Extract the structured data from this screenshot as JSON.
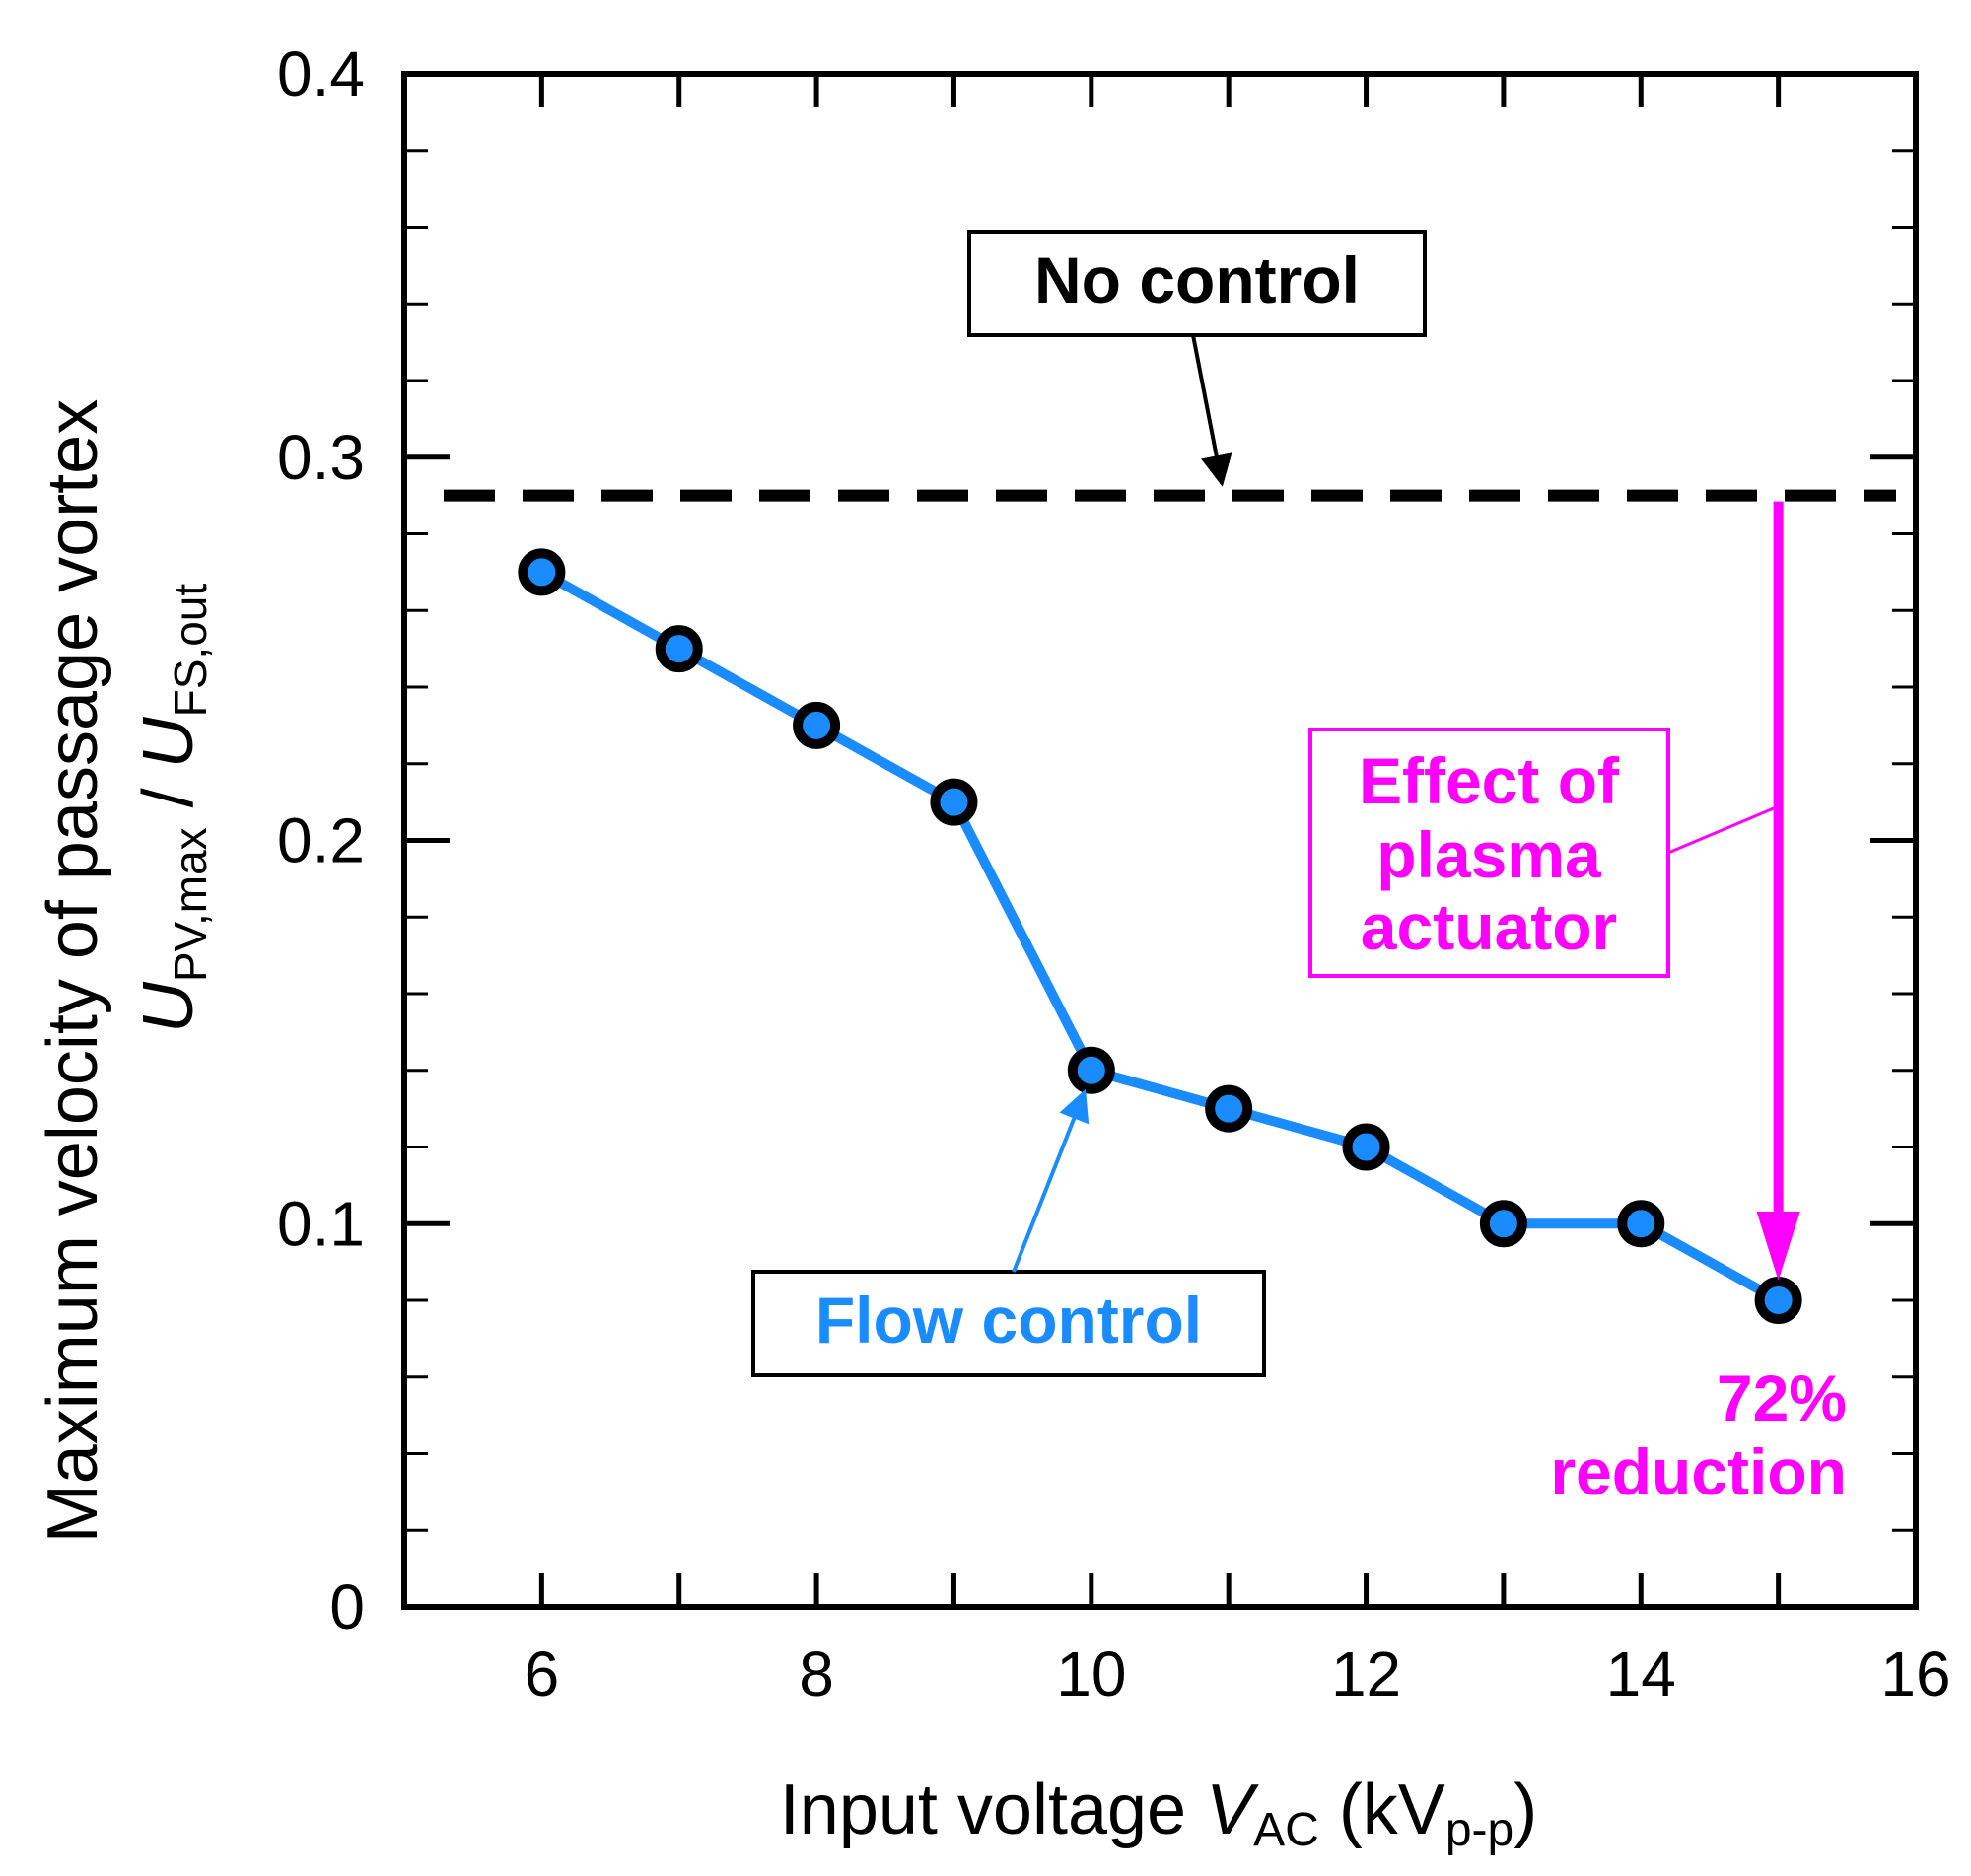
{
  "chart_data": {
    "type": "line",
    "x": [
      6,
      7,
      8,
      9,
      10,
      11,
      12,
      13,
      14,
      15
    ],
    "series": [
      {
        "name": "Flow control",
        "values": [
          0.27,
          0.25,
          0.23,
          0.21,
          0.14,
          0.13,
          0.12,
          0.1,
          0.1,
          0.08
        ],
        "color": "#1a8cff"
      }
    ],
    "reference_lines": [
      {
        "name": "No control",
        "y": 0.29,
        "style": "dashed",
        "color": "#000000"
      }
    ],
    "xlim": [
      5,
      16
    ],
    "ylim": [
      0,
      0.4
    ],
    "x_ticks": [
      6,
      8,
      10,
      12,
      14,
      16
    ],
    "x_tick_labels": [
      "6",
      "8",
      "10",
      "12",
      "14",
      "16"
    ],
    "y_ticks": [
      0,
      0.1,
      0.2,
      0.3,
      0.4
    ],
    "y_tick_labels": [
      "0",
      "0.1",
      "0.2",
      "0.3",
      "0.4"
    ],
    "xlabel": {
      "prefix": "Input voltage ",
      "var": "V",
      "var_sub": "AC",
      "unit_open": " (kV",
      "unit_sub": "p-p",
      "unit_close": ")"
    },
    "ylabel": {
      "line1": "Maximum velocity of passage vortex",
      "u1": "U",
      "u1_sub": "PV,max",
      "slash": " / ",
      "u2": "U",
      "u2_sub": "FS,out"
    },
    "annotations": {
      "no_control": "No control",
      "flow_control": "Flow control",
      "effect_lines": [
        "Effect of",
        "plasma",
        "actuator"
      ],
      "reduction_lines": [
        "72%",
        "reduction"
      ]
    },
    "colors": {
      "series": "#1a8cff",
      "marker_fill": "#1a8cff",
      "marker_edge": "#000000",
      "reference": "#000000",
      "effect": "#ff00ff"
    },
    "grid": false,
    "legend": "none"
  }
}
